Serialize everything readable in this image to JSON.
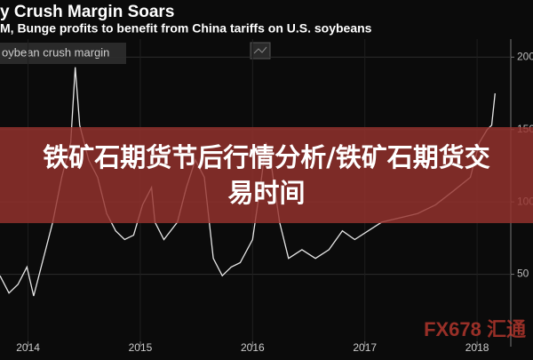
{
  "chart_data": {
    "type": "line",
    "title": "y Crush Margin Soars",
    "subtitle": "M, Bunge profits to benefit from China tariffs on U.S. soybeans",
    "series": [
      {
        "name": "oybean crush margin",
        "color": "#e6e6e6",
        "x": [
          2013.75,
          2013.83,
          2013.91,
          2013.99,
          2014.05,
          2014.22,
          2014.3,
          2014.38,
          2014.42,
          2014.46,
          2014.54,
          2014.62,
          2014.7,
          2014.78,
          2014.86,
          2014.94,
          2015.02,
          2015.1,
          2015.13,
          2015.21,
          2015.33,
          2015.41,
          2015.49,
          2015.57,
          2015.65,
          2015.73,
          2015.81,
          2015.89,
          2016.0,
          2016.08,
          2016.12,
          2016.16,
          2016.24,
          2016.32,
          2016.44,
          2016.56,
          2016.68,
          2016.8,
          2016.91,
          2017.03,
          2017.15,
          2017.31,
          2017.47,
          2017.63,
          2017.78,
          2017.94,
          2018.02,
          2018.09,
          2018.13,
          2018.16
        ],
        "values": [
          49,
          37,
          43,
          55,
          35,
          86,
          117,
          141,
          193,
          153,
          129,
          117,
          92,
          80,
          74,
          77,
          98,
          110,
          86,
          74,
          86,
          110,
          129,
          117,
          61,
          49,
          55,
          58,
          74,
          117,
          141,
          129,
          86,
          61,
          67,
          61,
          67,
          80,
          74,
          80,
          86,
          89,
          92,
          98,
          107,
          117,
          141,
          150,
          153,
          175
        ]
      }
    ],
    "xlim": [
      2013.75,
      2018.3
    ],
    "xticks": [
      2014,
      2015,
      2016,
      2017,
      2018
    ],
    "ylim": [
      0,
      210
    ],
    "yticks": [
      50,
      100,
      150,
      200
    ],
    "grid": true,
    "banner": "铁矿石期货节后行情分析/铁矿石期货交易时间",
    "watermark": "FX678 汇通"
  }
}
